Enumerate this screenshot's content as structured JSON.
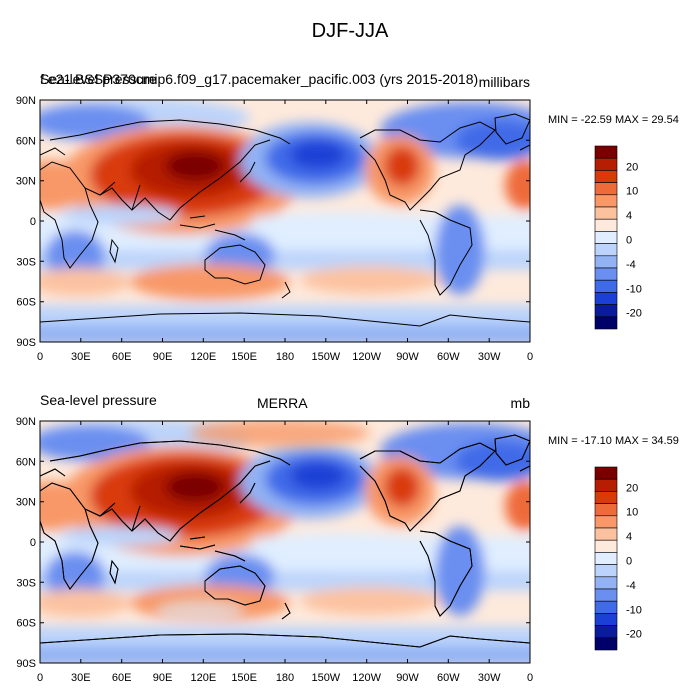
{
  "figure": {
    "title": "DJF-JJA"
  },
  "panels": [
    {
      "left_title": "Sea-level pressure",
      "center_title": "",
      "right_title": "millibars",
      "case_label": "f.e21.BSSP370cmip6.f09_g17.pacemaker_pacific.003 (yrs 2015-2018)",
      "stats": "MIN = -22.59 MAX =  29.54"
    },
    {
      "left_title": "Sea-level pressure",
      "center_title": "MERRA",
      "right_title": "mb",
      "case_label": "",
      "stats": "MIN = -17.10 MAX =  34.59"
    }
  ],
  "axes": {
    "lat_labels": [
      "90N",
      "60N",
      "30N",
      "0",
      "30S",
      "60S",
      "90S"
    ],
    "lon_labels": [
      "0",
      "30E",
      "60E",
      "90E",
      "120E",
      "150E",
      "180",
      "150W",
      "120W",
      "90W",
      "60W",
      "30W",
      "0"
    ]
  },
  "colorbar": {
    "labels": [
      "20",
      "10",
      "4",
      "0",
      "-4",
      "-10",
      "-20"
    ],
    "colors": [
      "#7a0000",
      "#b51e00",
      "#d93a0a",
      "#ef6a3a",
      "#f89868",
      "#fcc2a0",
      "#feeadc",
      "#e0eeff",
      "#bcd4fb",
      "#92b2f4",
      "#6a8ff0",
      "#3f6ae8",
      "#1c3fd6",
      "#0a1c9c",
      "#00006a"
    ]
  }
}
